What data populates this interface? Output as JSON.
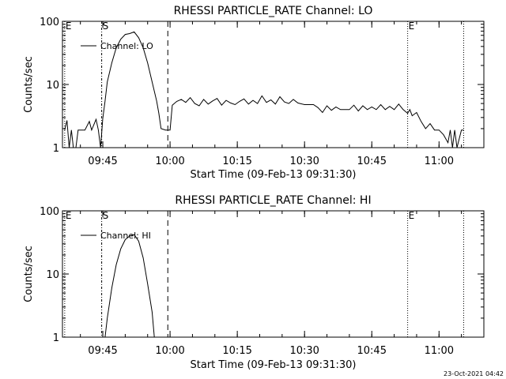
{
  "footer_timestamp": "23-Oct-2021 04:42",
  "chart_data": [
    {
      "type": "line",
      "title": "RHESSI PARTICLE_RATE Channel: LO",
      "xlabel": "Start Time (09-Feb-13 09:31:30)",
      "ylabel": "Counts/sec",
      "yscale": "log",
      "ylim": [
        1,
        100
      ],
      "y_ticks": [
        "1",
        "10",
        "100"
      ],
      "xlim": [
        "09:36:00",
        "11:10:00"
      ],
      "x_ticks": [
        "09:45",
        "10:00",
        "10:15",
        "10:30",
        "10:45",
        "11:00"
      ],
      "markers": [
        {
          "label": "E",
          "time": "09:36:30",
          "style": "dotted"
        },
        {
          "label": "S",
          "time": "09:44:45",
          "style": "dash-dot"
        },
        {
          "label": "",
          "time": "09:59:30",
          "style": "dashed"
        },
        {
          "label": "E",
          "time": "10:53:00",
          "style": "dotted"
        },
        {
          "label": "",
          "time": "11:05:30",
          "style": "dotted"
        }
      ],
      "legend": {
        "position": "top-left",
        "entries": [
          "Channel: LO"
        ]
      },
      "series": [
        {
          "name": "Channel: LO",
          "points": [
            [
              "09:36:30",
              1.9
            ],
            [
              "09:37:00",
              2.7
            ],
            [
              "09:37:30",
              1.0
            ],
            [
              "09:38:00",
              1.9
            ],
            [
              "09:38:30",
              0.9
            ],
            [
              "09:39:00",
              1.0
            ],
            [
              "09:39:30",
              1.9
            ],
            [
              "09:40:00",
              1.9
            ],
            [
              "09:41:00",
              1.9
            ],
            [
              "09:42:00",
              2.6
            ],
            [
              "09:42:30",
              1.9
            ],
            [
              "09:43:30",
              2.8
            ],
            [
              "09:44:00",
              1.9
            ],
            [
              "09:44:30",
              1.0
            ],
            [
              "09:45:00",
              2.9
            ],
            [
              "09:45:30",
              5.5
            ],
            [
              "09:46:00",
              11
            ],
            [
              "09:47:00",
              22
            ],
            [
              "09:48:00",
              38
            ],
            [
              "09:49:00",
              52
            ],
            [
              "09:50:00",
              62
            ],
            [
              "09:51:00",
              64
            ],
            [
              "09:52:00",
              68
            ],
            [
              "09:53:00",
              55
            ],
            [
              "09:54:00",
              38
            ],
            [
              "09:55:00",
              22
            ],
            [
              "09:56:00",
              11
            ],
            [
              "09:57:00",
              5.5
            ],
            [
              "09:57:30",
              3.5
            ],
            [
              "09:58:00",
              2.0
            ],
            [
              "09:59:00",
              1.9
            ],
            [
              "10:00:00",
              1.9
            ],
            [
              "10:00:30",
              4.7
            ],
            [
              "10:01:30",
              5.4
            ],
            [
              "10:02:30",
              5.8
            ],
            [
              "10:03:30",
              5.2
            ],
            [
              "10:04:30",
              6.2
            ],
            [
              "10:05:30",
              5.0
            ],
            [
              "10:06:30",
              4.6
            ],
            [
              "10:07:30",
              5.8
            ],
            [
              "10:08:30",
              4.9
            ],
            [
              "10:09:30",
              5.5
            ],
            [
              "10:10:30",
              6.0
            ],
            [
              "10:11:30",
              4.7
            ],
            [
              "10:12:30",
              5.6
            ],
            [
              "10:13:30",
              5.1
            ],
            [
              "10:14:30",
              4.8
            ],
            [
              "10:15:30",
              5.4
            ],
            [
              "10:16:30",
              5.9
            ],
            [
              "10:17:30",
              4.9
            ],
            [
              "10:18:30",
              5.6
            ],
            [
              "10:19:30",
              5.0
            ],
            [
              "10:20:30",
              6.6
            ],
            [
              "10:21:30",
              5.2
            ],
            [
              "10:22:30",
              5.7
            ],
            [
              "10:23:30",
              4.9
            ],
            [
              "10:24:30",
              6.4
            ],
            [
              "10:25:30",
              5.3
            ],
            [
              "10:26:30",
              5.0
            ],
            [
              "10:27:30",
              5.8
            ],
            [
              "10:28:30",
              5.1
            ],
            [
              "10:30:00",
              4.8
            ],
            [
              "10:32:00",
              4.8
            ],
            [
              "10:33:00",
              4.3
            ],
            [
              "10:34:00",
              3.6
            ],
            [
              "10:35:00",
              4.6
            ],
            [
              "10:36:00",
              3.9
            ],
            [
              "10:37:00",
              4.4
            ],
            [
              "10:38:00",
              4.0
            ],
            [
              "10:40:00",
              4.0
            ],
            [
              "10:41:00",
              4.7
            ],
            [
              "10:42:00",
              3.8
            ],
            [
              "10:43:00",
              4.6
            ],
            [
              "10:44:00",
              4.0
            ],
            [
              "10:45:00",
              4.4
            ],
            [
              "10:46:00",
              4.0
            ],
            [
              "10:47:00",
              4.8
            ],
            [
              "10:48:00",
              4.0
            ],
            [
              "10:49:00",
              4.5
            ],
            [
              "10:50:00",
              4.0
            ],
            [
              "10:51:00",
              4.9
            ],
            [
              "10:52:00",
              4.0
            ],
            [
              "10:53:00",
              3.5
            ],
            [
              "10:53:30",
              4.0
            ],
            [
              "10:54:00",
              3.2
            ],
            [
              "10:55:00",
              3.6
            ],
            [
              "10:56:00",
              2.6
            ],
            [
              "10:57:00",
              2.0
            ],
            [
              "10:58:00",
              2.4
            ],
            [
              "10:59:00",
              1.9
            ],
            [
              "11:00:00",
              1.9
            ],
            [
              "11:01:00",
              1.6
            ],
            [
              "11:02:00",
              1.2
            ],
            [
              "11:02:30",
              1.9
            ],
            [
              "11:03:00",
              1.0
            ],
            [
              "11:03:30",
              1.9
            ],
            [
              "11:04:00",
              1.0
            ],
            [
              "11:05:00",
              1.9
            ],
            [
              "11:05:30",
              1.9
            ]
          ]
        }
      ]
    },
    {
      "type": "line",
      "title": "RHESSI PARTICLE_RATE Channel: HI",
      "xlabel": "Start Time (09-Feb-13 09:31:30)",
      "ylabel": "Counts/sec",
      "yscale": "log",
      "ylim": [
        1,
        100
      ],
      "y_ticks": [
        "1",
        "10",
        "100"
      ],
      "xlim": [
        "09:36:00",
        "11:10:00"
      ],
      "x_ticks": [
        "09:45",
        "10:00",
        "10:15",
        "10:30",
        "10:45",
        "11:00"
      ],
      "markers": [
        {
          "label": "E",
          "time": "09:36:30",
          "style": "dotted"
        },
        {
          "label": "S",
          "time": "09:44:45",
          "style": "dash-dot"
        },
        {
          "label": "",
          "time": "09:59:30",
          "style": "dashed"
        },
        {
          "label": "E",
          "time": "10:53:00",
          "style": "dotted"
        },
        {
          "label": "",
          "time": "11:05:30",
          "style": "dotted"
        }
      ],
      "legend": {
        "position": "top-left",
        "entries": [
          "Channel: HI"
        ]
      },
      "series": [
        {
          "name": "Channel: HI",
          "points": [
            [
              "09:45:30",
              1.0
            ],
            [
              "09:46:00",
              2.0
            ],
            [
              "09:47:00",
              6
            ],
            [
              "09:48:00",
              14
            ],
            [
              "09:49:00",
              25
            ],
            [
              "09:50:00",
              35
            ],
            [
              "09:51:00",
              40
            ],
            [
              "09:52:00",
              42
            ],
            [
              "09:53:00",
              33
            ],
            [
              "09:54:00",
              18
            ],
            [
              "09:55:00",
              7
            ],
            [
              "09:56:00",
              2.5
            ],
            [
              "09:56:30",
              1.0
            ]
          ]
        }
      ]
    }
  ]
}
